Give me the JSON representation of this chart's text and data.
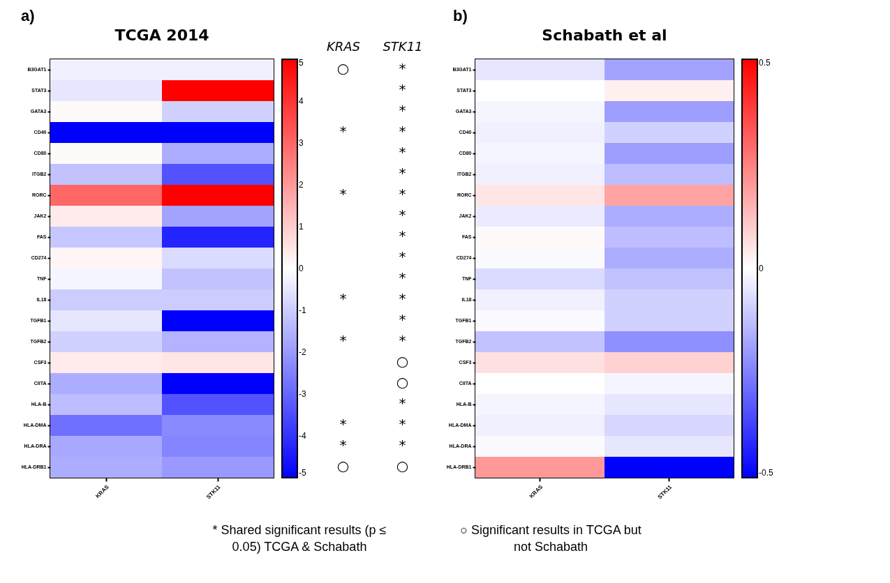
{
  "chart_data": [
    {
      "type": "heatmap",
      "title": "TCGA 2014",
      "annotations": [
        "a)"
      ],
      "categories": [
        "KRAS",
        "STK11"
      ],
      "y_categories": [
        "B3GAT1",
        "STAT3",
        "GATA3",
        "CD40",
        "CD80",
        "ITGB2",
        "RORC",
        "JAK2",
        "FAS",
        "CD274",
        "TNF",
        "IL18",
        "TGFB1",
        "TGFB2",
        "CSF3",
        "CIITA",
        "HLA-B",
        "HLA-DMA",
        "HLA-DRA",
        "HLA-DRB1"
      ],
      "cells": [
        [
          -0.3,
          -0.3
        ],
        [
          -0.5,
          5
        ],
        [
          0.1,
          -0.9
        ],
        [
          -5,
          -5
        ],
        [
          0.1,
          -1.6
        ],
        [
          -1.2,
          -3.4
        ],
        [
          3,
          5
        ],
        [
          0.4,
          -1.8
        ],
        [
          -1.1,
          -4.3
        ],
        [
          0.2,
          -0.7
        ],
        [
          -0.2,
          -1.2
        ],
        [
          -1,
          -1
        ],
        [
          -0.5,
          -5
        ],
        [
          -0.9,
          -1.5
        ],
        [
          0.4,
          0.5
        ],
        [
          -1.6,
          -5
        ],
        [
          -1.3,
          -3.4
        ],
        [
          -2.8,
          -2.3
        ],
        [
          -1.7,
          -2.4
        ],
        [
          -1.6,
          -2
        ]
      ],
      "clim": [
        -5,
        5
      ],
      "cticks": [
        -5,
        -4,
        -3,
        -2,
        -1,
        0,
        1,
        2,
        3,
        4,
        5
      ]
    },
    {
      "type": "other",
      "categories": [
        "KRAS",
        "STK11"
      ],
      "cell_labels": [
        [
          "○",
          "*"
        ],
        [
          null,
          "*"
        ],
        [
          null,
          "*"
        ],
        [
          "*",
          "*"
        ],
        [
          null,
          "*"
        ],
        [
          null,
          "*"
        ],
        [
          "*",
          "*"
        ],
        [
          null,
          "*"
        ],
        [
          null,
          "*"
        ],
        [
          null,
          "*"
        ],
        [
          null,
          "*"
        ],
        [
          "*",
          "*"
        ],
        [
          null,
          "*"
        ],
        [
          "*",
          "*"
        ],
        [
          null,
          "○"
        ],
        [
          null,
          "○"
        ],
        [
          null,
          "*"
        ],
        [
          "*",
          "*"
        ],
        [
          "*",
          "*"
        ],
        [
          "○",
          "○"
        ]
      ],
      "annotations": [
        "* Shared significant results (p ≤ 0.05) TCGA & Schabath",
        "○ Significant results in TCGA but not Schabath"
      ]
    },
    {
      "type": "heatmap",
      "title": "Schabath et al",
      "annotations": [
        "b)"
      ],
      "categories": [
        "KRAS",
        "STK11"
      ],
      "y_categories": [
        "B3GAT1",
        "STAT3",
        "GATA3",
        "CD40",
        "CD80",
        "ITGB2",
        "RORC",
        "JAK2",
        "FAS",
        "CD274",
        "TNF",
        "IL18",
        "TGFB1",
        "TGFB2",
        "CSF3",
        "CIITA",
        "HLA-B",
        "HLA-DMA",
        "HLA-DRA",
        "HLA-DRB1"
      ],
      "cells": [
        [
          -0.05,
          -0.18
        ],
        [
          0,
          0.03
        ],
        [
          -0.02,
          -0.19
        ],
        [
          -0.03,
          -0.09
        ],
        [
          -0.02,
          -0.19
        ],
        [
          -0.03,
          -0.13
        ],
        [
          0.05,
          0.18
        ],
        [
          -0.04,
          -0.16
        ],
        [
          0.01,
          -0.13
        ],
        [
          -0.01,
          -0.16
        ],
        [
          -0.07,
          -0.12
        ],
        [
          -0.03,
          -0.09
        ],
        [
          -0.01,
          -0.09
        ],
        [
          -0.12,
          -0.22
        ],
        [
          0.06,
          0.09
        ],
        [
          0,
          -0.02
        ],
        [
          -0.02,
          -0.05
        ],
        [
          -0.03,
          -0.08
        ],
        [
          -0.01,
          -0.05
        ],
        [
          0.2,
          -0.5
        ]
      ],
      "clim": [
        -0.5,
        0.5
      ],
      "cticks": [
        -0.5,
        0,
        0.5
      ]
    }
  ]
}
